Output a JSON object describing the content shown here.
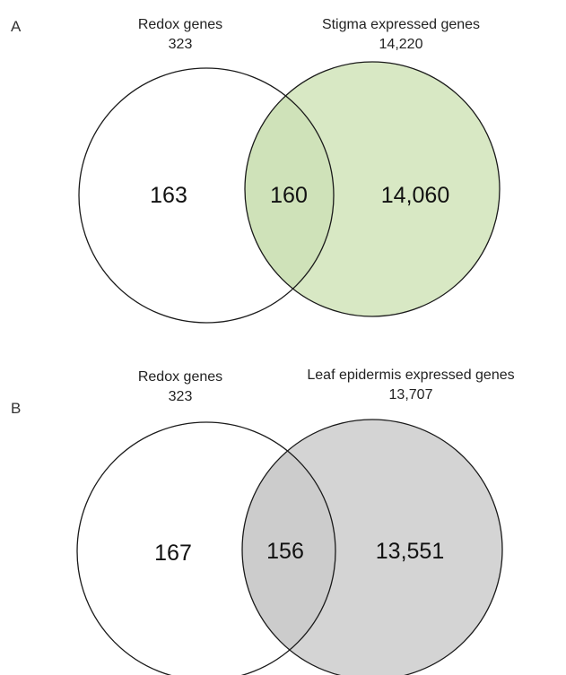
{
  "panels": [
    {
      "letter": "A",
      "left_set": {
        "name": "Redox genes",
        "total": "323"
      },
      "right_set": {
        "name": "Stigma expressed genes",
        "total": "14,220"
      },
      "counts": {
        "left_only": "163",
        "overlap": "160",
        "right_only": "14,060"
      },
      "right_fill": "#d8e8c4",
      "overlap_fill": "#cfe2b9"
    },
    {
      "letter": "B",
      "left_set": {
        "name": "Redox genes",
        "total": "323"
      },
      "right_set": {
        "name": "Leaf epidermis expressed genes",
        "total": "13,707"
      },
      "counts": {
        "left_only": "167",
        "overlap": "156",
        "right_only": "13,551"
      },
      "right_fill": "#d4d4d4",
      "overlap_fill": "#cccccc"
    }
  ],
  "colors": {
    "outline": "#1a1a1a",
    "left_fill": "#ffffff"
  }
}
